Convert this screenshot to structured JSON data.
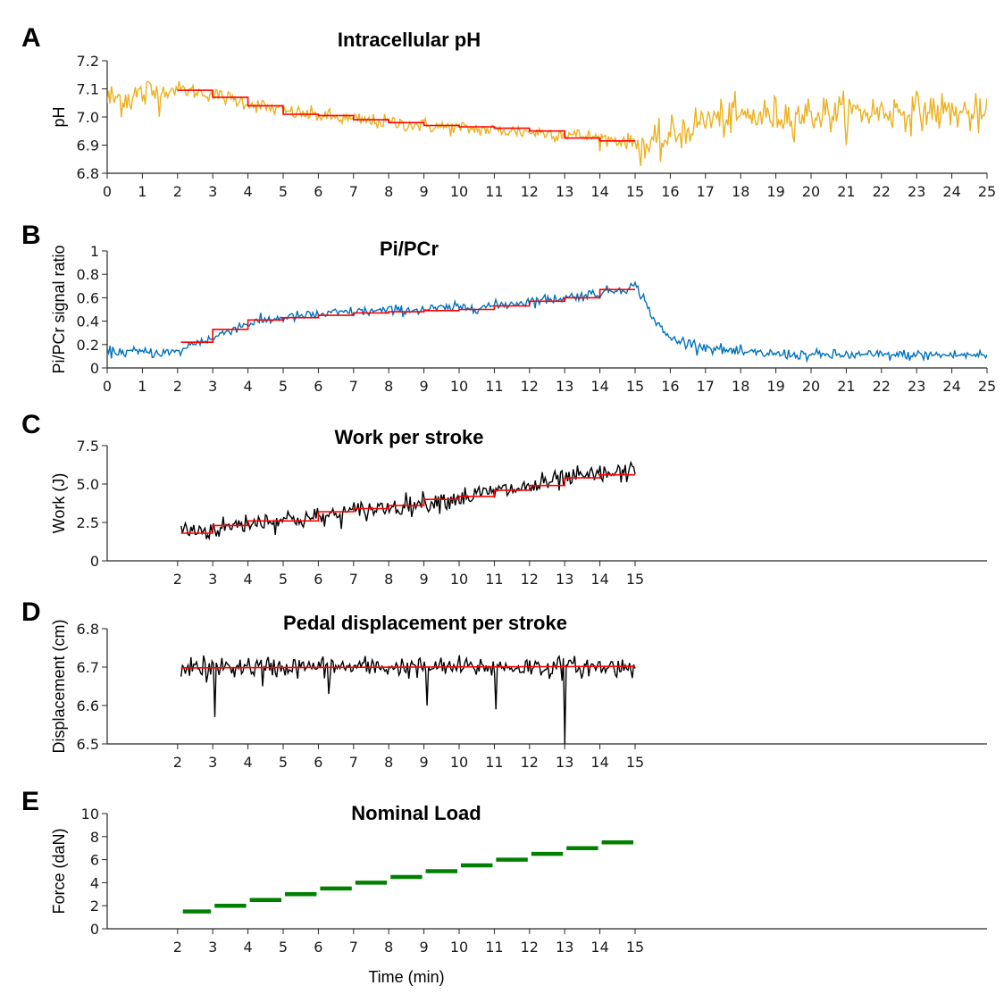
{
  "figure": {
    "x_axis_label": "Time (min)"
  },
  "chart_data": [
    {
      "type": "line",
      "panel": "A",
      "title": "Intracellular pH",
      "ylabel": "pH",
      "xlabel": "",
      "xlim": [
        0,
        25
      ],
      "ylim": [
        6.8,
        7.2
      ],
      "xticks": [
        0,
        1,
        2,
        3,
        4,
        5,
        6,
        7,
        8,
        9,
        10,
        11,
        12,
        13,
        14,
        15,
        16,
        17,
        18,
        19,
        20,
        21,
        22,
        23,
        24,
        25
      ],
      "yticks": [
        "6.8",
        "6.9",
        "7.0",
        "7.1",
        "7.2"
      ],
      "grid": false,
      "series": [
        {
          "color": "#EDB120",
          "style": "noisy",
          "x": [
            0,
            2,
            3,
            5,
            7,
            10,
            13,
            15,
            15.5,
            16,
            16.5,
            17,
            18,
            20,
            22,
            24,
            25
          ],
          "values": [
            7.06,
            7.1,
            7.08,
            7.02,
            6.99,
            6.96,
            6.94,
            6.91,
            6.89,
            6.93,
            6.96,
            6.99,
            7.0,
            7.01,
            7.02,
            7.02,
            7.0
          ],
          "noise": 0.04,
          "noise_pattern": [
            {
              "x": [
                0,
                1.5
              ],
              "noise": 0.045
            },
            {
              "x": [
                1.5,
                15
              ],
              "noise": 0.018
            },
            {
              "x": [
                15,
                25
              ],
              "noise": 0.045
            }
          ]
        },
        {
          "color": "#FF0000",
          "style": "step",
          "steps": [
            [
              2,
              7.095
            ],
            [
              3,
              7.07
            ],
            [
              4,
              7.04
            ],
            [
              5,
              7.01
            ],
            [
              6,
              7.005
            ],
            [
              7,
              6.99
            ],
            [
              8,
              6.98
            ],
            [
              9,
              6.97
            ],
            [
              10,
              6.965
            ],
            [
              11,
              6.96
            ],
            [
              12,
              6.95
            ],
            [
              13,
              6.925
            ],
            [
              14,
              6.915
            ]
          ],
          "end_x": 15
        }
      ]
    },
    {
      "type": "line",
      "panel": "B",
      "title": "Pi/PCr",
      "ylabel": "Pi/PCr signal ratio",
      "xlabel": "",
      "xlim": [
        0,
        25
      ],
      "ylim": [
        0,
        1
      ],
      "xticks": [
        0,
        1,
        2,
        3,
        4,
        5,
        6,
        7,
        8,
        9,
        10,
        11,
        12,
        13,
        14,
        15,
        16,
        17,
        18,
        19,
        20,
        21,
        22,
        23,
        24,
        25
      ],
      "yticks": [
        "0",
        "0.2",
        "0.4",
        "0.6",
        "0.8",
        "1"
      ],
      "grid": false,
      "series": [
        {
          "color": "#0072BD",
          "style": "noisy",
          "x": [
            0,
            2,
            2.5,
            3,
            3.5,
            4,
            5,
            7,
            9,
            11,
            12,
            13,
            14,
            15,
            15.2,
            15.6,
            16,
            17,
            18,
            20,
            22,
            25
          ],
          "values": [
            0.14,
            0.13,
            0.22,
            0.25,
            0.33,
            0.38,
            0.43,
            0.48,
            0.5,
            0.53,
            0.57,
            0.6,
            0.64,
            0.7,
            0.62,
            0.38,
            0.25,
            0.18,
            0.13,
            0.11,
            0.11,
            0.11
          ],
          "noise": 0.03
        },
        {
          "color": "#FF0000",
          "style": "step",
          "steps": [
            [
              2.1,
              0.22
            ],
            [
              3,
              0.33
            ],
            [
              4,
              0.41
            ],
            [
              5,
              0.43
            ],
            [
              6,
              0.45
            ],
            [
              7,
              0.47
            ],
            [
              8,
              0.48
            ],
            [
              9,
              0.49
            ],
            [
              10,
              0.5
            ],
            [
              11,
              0.53
            ],
            [
              12,
              0.57
            ],
            [
              13,
              0.6
            ],
            [
              14,
              0.67
            ]
          ],
          "end_x": 15
        }
      ]
    },
    {
      "type": "line",
      "panel": "C",
      "title": "Work per stroke",
      "ylabel": "Work (J)",
      "xlabel": "",
      "xlim": [
        -2,
        25
      ],
      "ylim": [
        0,
        7.5
      ],
      "xticks": [
        2,
        3,
        4,
        5,
        6,
        7,
        8,
        9,
        10,
        11,
        12,
        13,
        14,
        15
      ],
      "yticks": [
        "0",
        "2.5",
        "5.0",
        "7.5"
      ],
      "grid": false,
      "series": [
        {
          "color": "#000000",
          "style": "noisy",
          "x": [
            2.1,
            3,
            4,
            5,
            6,
            7,
            8,
            9,
            10,
            11,
            12,
            13,
            14,
            15
          ],
          "values": [
            2.0,
            2.0,
            2.5,
            2.7,
            2.8,
            3.2,
            3.5,
            3.8,
            4.1,
            4.5,
            4.8,
            5.3,
            5.6,
            5.8
          ],
          "noise": 0.45
        },
        {
          "color": "#FF0000",
          "style": "step",
          "steps": [
            [
              2.1,
              1.8
            ],
            [
              3,
              2.3
            ],
            [
              4,
              2.6
            ],
            [
              5,
              2.6
            ],
            [
              6,
              3.2
            ],
            [
              7,
              3.4
            ],
            [
              8,
              3.6
            ],
            [
              9,
              4.0
            ],
            [
              10,
              4.2
            ],
            [
              11,
              4.6
            ],
            [
              12,
              4.9
            ],
            [
              13,
              5.4
            ],
            [
              14,
              5.6
            ]
          ],
          "end_x": 15
        }
      ]
    },
    {
      "type": "line",
      "panel": "D",
      "title": "Pedal displacement per stroke",
      "ylabel": "Displacement (cm)",
      "xlabel": "",
      "xlim": [
        -2,
        25
      ],
      "ylim": [
        6.5,
        6.8
      ],
      "xticks": [
        2,
        3,
        4,
        5,
        6,
        7,
        8,
        9,
        10,
        11,
        12,
        13,
        14,
        15
      ],
      "yticks": [
        "6.5",
        "6.6",
        "6.7",
        "6.8"
      ],
      "grid": false,
      "series": [
        {
          "color": "#000000",
          "style": "noisy",
          "x": [
            2.1,
            15
          ],
          "values": [
            6.7,
            6.7
          ],
          "noise": 0.018,
          "spikes": [
            [
              3.05,
              6.57
            ],
            [
              6.3,
              6.63
            ],
            [
              9.1,
              6.6
            ],
            [
              11.05,
              6.59
            ],
            [
              13,
              6.5
            ],
            [
              2.8,
              6.66
            ],
            [
              4.4,
              6.65
            ]
          ]
        },
        {
          "color": "#FF0000",
          "style": "line",
          "x": [
            2.1,
            15
          ],
          "values": [
            6.698,
            6.702
          ]
        }
      ]
    },
    {
      "type": "line",
      "panel": "E",
      "title": "Nominal Load",
      "ylabel": "Force (daN)",
      "xlabel": "Time (min)",
      "xlim": [
        -2,
        25
      ],
      "ylim": [
        0,
        10
      ],
      "xticks": [
        2,
        3,
        4,
        5,
        6,
        7,
        8,
        9,
        10,
        11,
        12,
        13,
        14,
        15
      ],
      "yticks": [
        "0",
        "2",
        "4",
        "6",
        "8",
        "10"
      ],
      "grid": false,
      "series": [
        {
          "color": "#008000",
          "style": "step-segments",
          "steps": [
            [
              2.1,
              1.5
            ],
            [
              3,
              2.0
            ],
            [
              4,
              2.5
            ],
            [
              5,
              3.0
            ],
            [
              6,
              3.5
            ],
            [
              7,
              4.0
            ],
            [
              8,
              4.5
            ],
            [
              9,
              5.0
            ],
            [
              10,
              5.5
            ],
            [
              11,
              6.0
            ],
            [
              12,
              6.5
            ],
            [
              13,
              7.0
            ],
            [
              14,
              7.5
            ]
          ],
          "end_x": 15
        }
      ]
    }
  ]
}
